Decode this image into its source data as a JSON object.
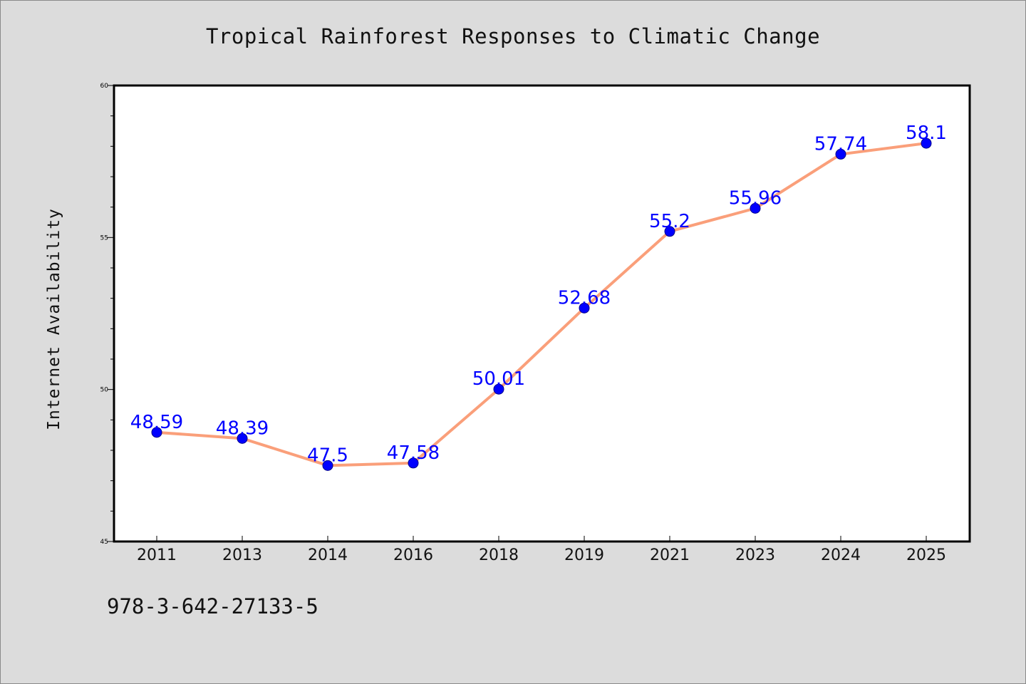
{
  "chart_data": {
    "type": "line",
    "title": "Tropical Rainforest Responses to Climatic Change",
    "ylabel": "Internet Availability",
    "xlabel": "",
    "categories": [
      "2011",
      "2013",
      "2014",
      "2016",
      "2018",
      "2019",
      "2021",
      "2023",
      "2024",
      "2025"
    ],
    "series": [
      {
        "values": [
          48.59,
          48.39,
          47.5,
          47.58,
          50.01,
          52.68,
          55.2,
          55.96,
          57.74,
          58.1
        ],
        "data_labels": [
          "48.59",
          "48.39",
          "47.5",
          "47.58",
          "50.01",
          "52.68",
          "55.2",
          "55.96",
          "57.74",
          "58.1"
        ]
      }
    ],
    "ylim": [
      45,
      60
    ],
    "yticks": [
      "45",
      "50",
      "55",
      "60"
    ],
    "grid": false,
    "colors": {
      "line": "#fa9f7a",
      "marker": "#0000ff",
      "data_label": "#0000ff",
      "plot_background": "#ffffff",
      "figure_background": "#dcdcdc"
    }
  },
  "footer": {
    "isbn": "978-3-642-27133-5"
  }
}
